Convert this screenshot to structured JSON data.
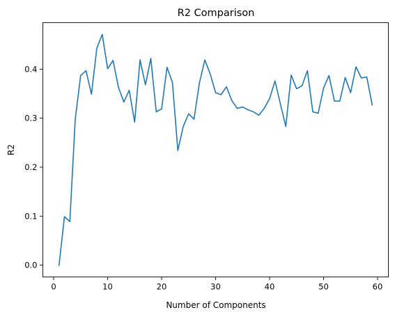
{
  "chart_data": {
    "type": "line",
    "title": "R2 Comparison",
    "xlabel": "Number of Components",
    "ylabel": "R2",
    "xlim": [
      -2,
      62
    ],
    "ylim": [
      -0.024,
      0.495
    ],
    "xticks": [
      0,
      10,
      20,
      30,
      40,
      50,
      60
    ],
    "yticks": [
      0.0,
      0.1,
      0.2,
      0.3,
      0.4
    ],
    "xtick_labels": [
      "0",
      "10",
      "20",
      "30",
      "40",
      "50",
      "60"
    ],
    "ytick_labels": [
      "0.0",
      "0.1",
      "0.2",
      "0.3",
      "0.4"
    ],
    "grid": false,
    "series": [
      {
        "color": "#1f77b4",
        "x": [
          1,
          2,
          3,
          4,
          5,
          6,
          7,
          8,
          9,
          10,
          11,
          12,
          13,
          14,
          15,
          16,
          17,
          18,
          19,
          20,
          21,
          22,
          23,
          24,
          25,
          26,
          27,
          28,
          29,
          30,
          31,
          32,
          33,
          34,
          35,
          36,
          37,
          38,
          39,
          40,
          41,
          42,
          43,
          44,
          45,
          46,
          47,
          48,
          49,
          50,
          51,
          52,
          53,
          54,
          55,
          56,
          57,
          58,
          59
        ],
        "values": [
          0.0,
          0.099,
          0.089,
          0.298,
          0.387,
          0.397,
          0.349,
          0.443,
          0.471,
          0.401,
          0.418,
          0.363,
          0.333,
          0.357,
          0.292,
          0.419,
          0.368,
          0.422,
          0.313,
          0.319,
          0.404,
          0.373,
          0.234,
          0.283,
          0.309,
          0.298,
          0.372,
          0.419,
          0.39,
          0.352,
          0.348,
          0.364,
          0.336,
          0.32,
          0.323,
          0.317,
          0.313,
          0.306,
          0.32,
          0.34,
          0.376,
          0.329,
          0.283,
          0.388,
          0.36,
          0.366,
          0.397,
          0.313,
          0.31,
          0.362,
          0.387,
          0.335,
          0.335,
          0.383,
          0.352,
          0.405,
          0.382,
          0.384,
          0.327
        ]
      }
    ]
  }
}
